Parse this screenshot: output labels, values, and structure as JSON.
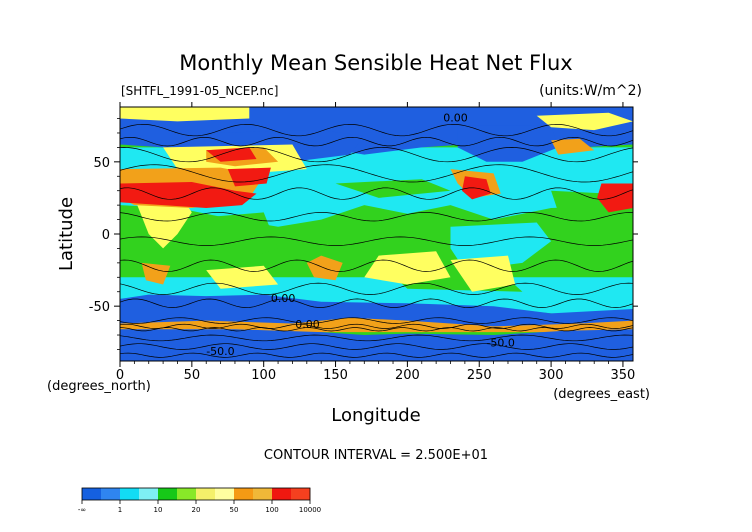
{
  "chart_data": {
    "type": "heatmap",
    "title": "Monthly Mean Sensible Heat Net Flux",
    "source_label": "[SHTFL_1991-05_NCEP.nc]",
    "units_label": "(units:W/m^2)",
    "xlabel": "Longitude",
    "ylabel": "Latitude",
    "x_unit_label": "(degrees_east)",
    "y_unit_label": "(degrees_north)",
    "xlim": [
      0,
      357
    ],
    "ylim": [
      -88,
      88
    ],
    "x_ticks": [
      0,
      50,
      100,
      150,
      200,
      250,
      300,
      350
    ],
    "y_ticks": [
      50,
      0,
      -50
    ],
    "contour_interval_text": "CONTOUR INTERVAL = 2.500E+01",
    "contour_labels": [
      {
        "text": "0.00",
        "lon": 225,
        "lat": 78
      },
      {
        "text": "0.00",
        "lon": 105,
        "lat": -47
      },
      {
        "text": "0.00",
        "lon": 122,
        "lat": -65
      },
      {
        "text": "-50.0",
        "lon": 60,
        "lat": -84
      },
      {
        "text": "-50.0",
        "lon": 255,
        "lat": -78
      }
    ],
    "legend": {
      "colors": [
        "#1f5fe0",
        "#1fe8f2",
        "#32d21e",
        "#ffff60",
        "#f2a11a",
        "#f21a12"
      ],
      "sub_colors": [
        "#1560e0",
        "#2f85f0",
        "#12dcf5",
        "#7ef0f5",
        "#16c818",
        "#88e828",
        "#f4f06a",
        "#fffea0",
        "#f59a14",
        "#f0b838",
        "#f01810",
        "#f5401f"
      ],
      "tick_labels": [
        "-∞",
        "1",
        "10",
        "20",
        "50",
        "100",
        "10000"
      ]
    },
    "colors": {
      "deep_negative": "#1f5fe0",
      "low": "#1fe8f2",
      "mid": "#32d21e",
      "moderate": "#ffff60",
      "high": "#f2a11a",
      "very_high": "#f21a12"
    }
  }
}
